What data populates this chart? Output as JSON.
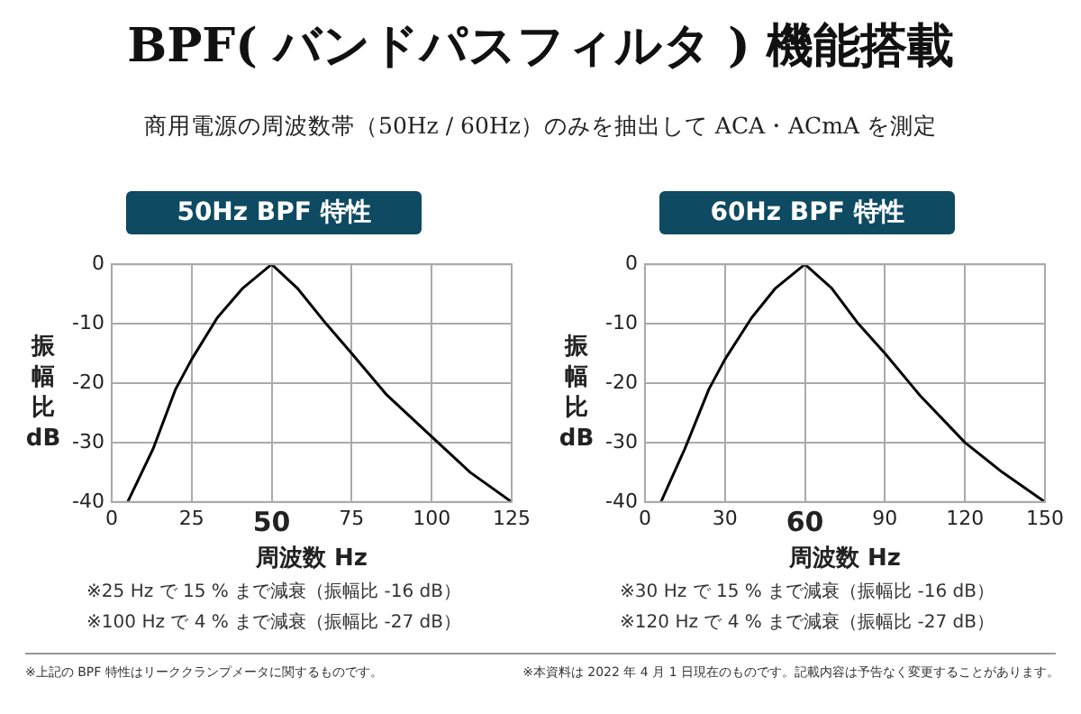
{
  "chart_data": [
    {
      "type": "other",
      "title": "BPF( バンドパスフィルタ ) 機能搭載",
      "subtitle": "商用電源の周波数帯（50Hz / 60Hz）のみを抽出して ACA・ACmA を測定",
      "annotations": [
        "※上記の BPF 特性はリーククランプメータに関するものです。",
        "※本資料は 2022 年 4 月 1 日現在のものです。記載内容は予告なく変更することがあります。"
      ]
    },
    {
      "type": "line",
      "title": "50Hz BPF 特性",
      "xlabel": "周波数 Hz",
      "ylabel": "振幅比 dB",
      "series": [
        {
          "color": "#000000",
          "x": [
            5,
            13,
            20,
            25,
            33,
            41,
            50,
            58,
            67,
            75,
            86,
            100,
            112,
            125
          ],
          "values": [
            -40,
            -31,
            -21,
            -16,
            -9,
            -4,
            0,
            -4,
            -10,
            -15,
            -22,
            -29,
            -35,
            -40
          ]
        }
      ],
      "xlim": [
        0,
        125
      ],
      "xticks": [
        0,
        25,
        50,
        75,
        100,
        125
      ],
      "ylim": [
        -40,
        0
      ],
      "yticks": [
        0,
        -10,
        -20,
        -30,
        -40
      ],
      "grid": true,
      "marker": "none",
      "annotations": [
        "※25 Hz で 15 % まで減衰（振幅比 -16 dB）",
        "※100 Hz で 4 % まで減衰（振幅比 -27 dB）"
      ]
    },
    {
      "type": "line",
      "title": "60Hz BPF 特性",
      "xlabel": "周波数 Hz",
      "ylabel": "振幅比 dB",
      "series": [
        {
          "color": "#000000",
          "x": [
            6,
            15,
            24,
            30,
            40,
            49,
            60,
            70,
            80,
            90,
            103,
            120,
            134,
            150
          ],
          "values": [
            -40,
            -31,
            -21,
            -16,
            -9,
            -4,
            0,
            -4,
            -10,
            -15,
            -22,
            -30,
            -35,
            -40
          ]
        }
      ],
      "xlim": [
        0,
        150
      ],
      "xticks": [
        0,
        30,
        60,
        90,
        120,
        150
      ],
      "ylim": [
        -40,
        0
      ],
      "yticks": [
        0,
        -10,
        -20,
        -30,
        -40
      ],
      "grid": true,
      "marker": "none",
      "annotations": [
        "※30 Hz で 15 % まで減衰（振幅比 -16 dB）",
        "※120 Hz で 4 % まで減衰（振幅比 -27 dB）"
      ]
    }
  ]
}
